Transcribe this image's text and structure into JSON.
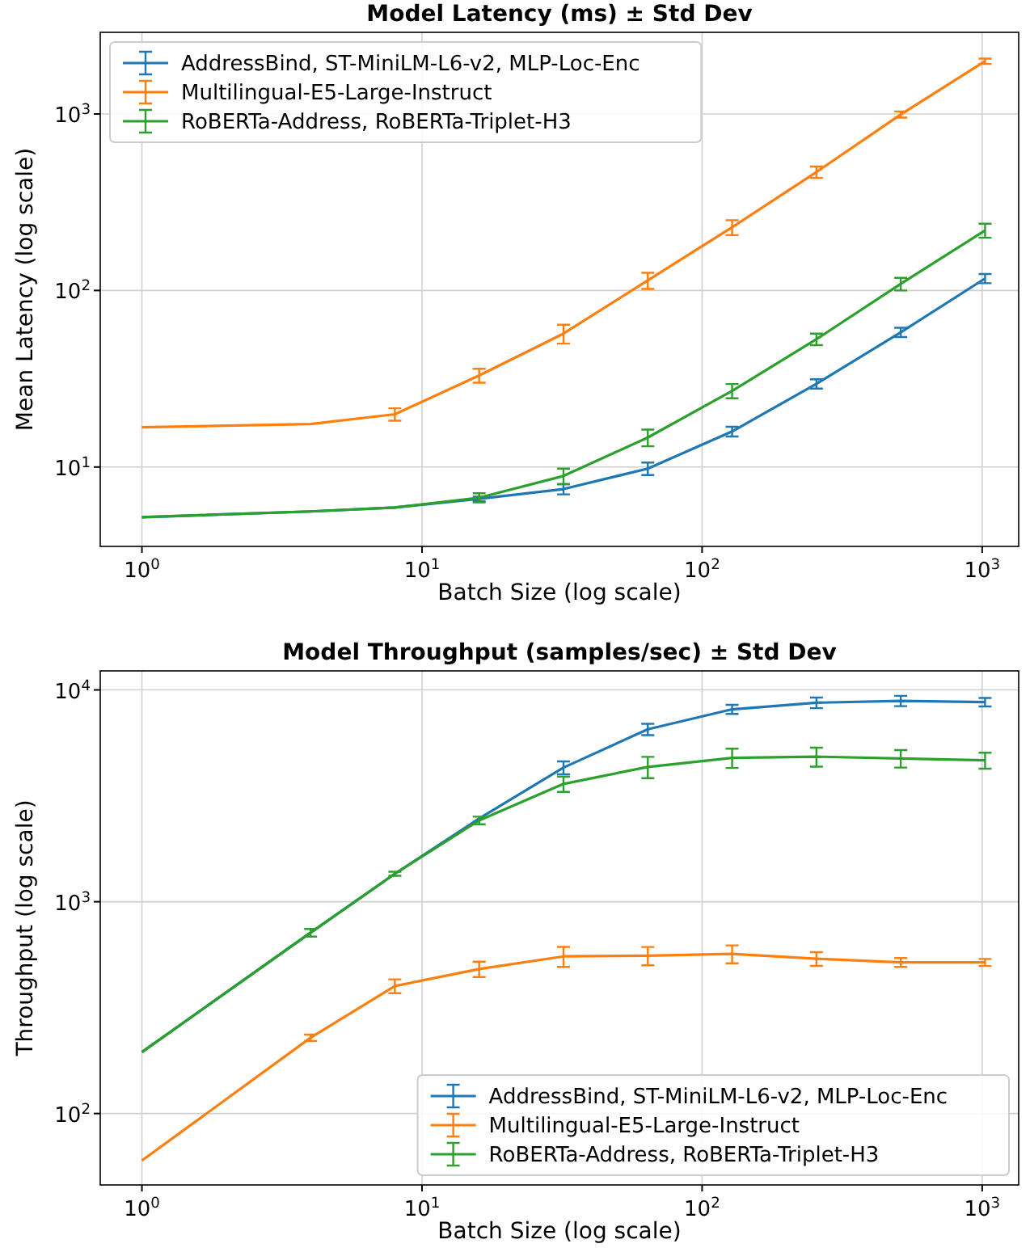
{
  "chart_data": [
    {
      "type": "line",
      "title": "Model Latency (ms) ± Std Dev",
      "xlabel": "Batch Size (log scale)",
      "ylabel": "Mean Latency (log scale)",
      "log": "xy",
      "grid": true,
      "legend": "top left",
      "x": [
        1,
        4,
        8,
        16,
        32,
        64,
        128,
        256,
        512,
        1024
      ],
      "xlim": [
        0.71,
        1350
      ],
      "ylim": [
        3.55,
        2900
      ],
      "xticks": [
        {
          "value": 1,
          "label": "10$^{0}$"
        },
        {
          "value": 10,
          "label": "10$^{1}$"
        },
        {
          "value": 100,
          "label": "10$^{2}$"
        },
        {
          "value": 1000,
          "label": "10$^{3}$"
        }
      ],
      "yticks": [
        {
          "value": 10,
          "label": "10$^{1}$"
        },
        {
          "value": 100,
          "label": "10$^{2}$"
        },
        {
          "value": 1000,
          "label": "10$^{3}$"
        }
      ],
      "series": [
        {
          "name": "AddressBind, ST-MiniLM-L6-v2, MLP-Loc-Enc",
          "color": "#1f77b4",
          "values": [
            5.2,
            5.6,
            5.9,
            6.6,
            7.5,
            9.8,
            15.9,
            29.6,
            58,
            117
          ],
          "errors": [
            null,
            null,
            null,
            0.2,
            0.5,
            0.8,
            1,
            1.8,
            3.5,
            7
          ]
        },
        {
          "name": "Multilingual-E5-Large-Instruct",
          "color": "#ff7f0e",
          "values": [
            16.8,
            17.5,
            19.9,
            33,
            57,
            114,
            228,
            469,
            993,
            1990
          ],
          "errors": [
            null,
            null,
            1.6,
            3,
            7,
            12,
            22,
            35,
            40,
            70
          ]
        },
        {
          "name": "RoBERTa-Address, RoBERTa-Triplet-H3",
          "color": "#2ca02c",
          "values": [
            5.2,
            5.6,
            5.9,
            6.7,
            8.9,
            14.7,
            27,
            53,
            109,
            219
          ],
          "errors": [
            null,
            null,
            null,
            0.4,
            0.9,
            1.6,
            2.5,
            4,
            9,
            20
          ]
        }
      ]
    },
    {
      "type": "line",
      "title": "Model Throughput (samples/sec) ± Std Dev",
      "xlabel": "Batch Size (log scale)",
      "ylabel": "Throughput (log scale)",
      "log": "xy",
      "grid": true,
      "legend": "bottom right",
      "x": [
        1,
        4,
        8,
        16,
        32,
        64,
        128,
        256,
        512,
        1024
      ],
      "xlim": [
        0.71,
        1350
      ],
      "ylim": [
        46,
        12300
      ],
      "xticks": [
        {
          "value": 1,
          "label": "10$^{0}$"
        },
        {
          "value": 10,
          "label": "10$^{1}$"
        },
        {
          "value": 100,
          "label": "10$^{2}$"
        },
        {
          "value": 1000,
          "label": "10$^{3}$"
        }
      ],
      "yticks": [
        {
          "value": 100,
          "label": "10$^{2}$"
        },
        {
          "value": 1000,
          "label": "10$^{3}$"
        },
        {
          "value": 10000,
          "label": "10$^{4}$"
        }
      ],
      "series": [
        {
          "name": "AddressBind, ST-MiniLM-L6-v2, MLP-Loc-Enc",
          "color": "#1f77b4",
          "values": [
            195,
            714,
            1355,
            2470,
            4300,
            6520,
            8100,
            8700,
            8880,
            8760
          ],
          "errors": [
            null,
            null,
            null,
            null,
            300,
            400,
            400,
            500,
            500,
            400
          ]
        },
        {
          "name": "Multilingual-E5-Large-Instruct",
          "color": "#ff7f0e",
          "values": [
            60,
            228,
            400,
            481,
            552,
            556,
            567,
            538,
            517,
            517
          ],
          "errors": [
            null,
            8,
            30,
            40,
            60,
            55,
            55,
            40,
            25,
            20
          ]
        },
        {
          "name": "RoBERTa-Address, RoBERTa-Triplet-H3",
          "color": "#2ca02c",
          "values": [
            195,
            714,
            1355,
            2420,
            3600,
            4330,
            4780,
            4840,
            4750,
            4650
          ],
          "errors": [
            null,
            30,
            30,
            100,
            300,
            500,
            500,
            500,
            450,
            400
          ]
        }
      ]
    }
  ]
}
